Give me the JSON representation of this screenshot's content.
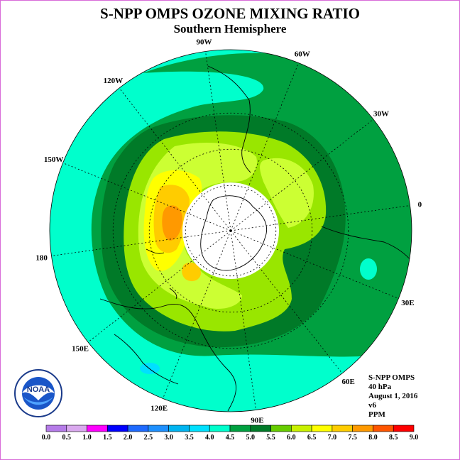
{
  "title": "S-NPP OMPS OZONE MIXING RATIO",
  "subtitle": "Southern Hemisphere",
  "longitude_labels": [
    {
      "text": "90W",
      "lon": -90
    },
    {
      "text": "60W",
      "lon": -60
    },
    {
      "text": "30W",
      "lon": -30
    },
    {
      "text": "0",
      "lon": 0
    },
    {
      "text": "30E",
      "lon": 30
    },
    {
      "text": "60E",
      "lon": 60
    },
    {
      "text": "90E",
      "lon": 90
    },
    {
      "text": "120E",
      "lon": 120
    },
    {
      "text": "150E",
      "lon": 150
    },
    {
      "text": "180",
      "lon": 180
    },
    {
      "text": "150W",
      "lon": -150
    },
    {
      "text": "120W",
      "lon": -120
    }
  ],
  "info": {
    "instrument": "S-NPP OMPS",
    "pressure": "40 hPa",
    "date": "August 1, 2016",
    "version": "v6",
    "units": "PPM"
  },
  "logo": {
    "text": "NOAA"
  },
  "colorbar": {
    "labels": [
      "0.0",
      "0.5",
      "1.0",
      "1.5",
      "2.0",
      "2.5",
      "3.0",
      "3.5",
      "4.0",
      "4.5",
      "5.0",
      "5.5",
      "6.0",
      "6.5",
      "7.0",
      "7.5",
      "8.0",
      "8.5",
      "9.0"
    ],
    "colors": [
      "#b57be8",
      "#d9a8ee",
      "#ff00ff",
      "#0000ff",
      "#1e6aff",
      "#1e90ff",
      "#00b4f0",
      "#00e0ff",
      "#00ffcc",
      "#00a040",
      "#007a28",
      "#66cc00",
      "#c8f000",
      "#ffff00",
      "#ffcc00",
      "#ff9900",
      "#ff5500",
      "#ff0000",
      "#996633"
    ]
  },
  "colors": {
    "outer_band": "#00ffcc",
    "green": "#00a040",
    "dark_green": "#007a28",
    "light_green": "#99e600",
    "yellow_green": "#ccff33",
    "yellow": "#ffff00",
    "gold": "#ffcc00",
    "orange": "#ff9900",
    "missing": "#ffffff"
  }
}
